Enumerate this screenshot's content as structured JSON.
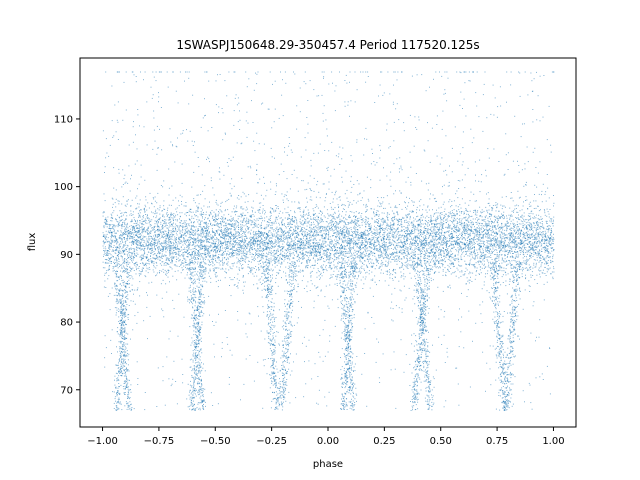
{
  "chart_data": {
    "type": "scatter",
    "title": "1SWASPJ150648.29-350457.4 Period 117520.125s",
    "xlabel": "phase",
    "ylabel": "flux",
    "xlim": [
      -1.1,
      1.1
    ],
    "ylim": [
      64.5,
      119
    ],
    "xticks": [
      -1.0,
      -0.75,
      -0.5,
      -0.25,
      0.0,
      0.25,
      0.5,
      0.75,
      1.0
    ],
    "xtick_labels": [
      "−1.00",
      "−0.75",
      "−0.50",
      "−0.25",
      "0.00",
      "0.25",
      "0.50",
      "0.75",
      "1.00"
    ],
    "yticks": [
      70,
      80,
      90,
      100,
      110
    ],
    "ytick_labels": [
      "70",
      "80",
      "90",
      "100",
      "110"
    ],
    "grid": false,
    "legend": "none",
    "marker_color": "#1f77b4",
    "series": [
      {
        "band_center": 92,
        "band_spread": 2.5,
        "x_range": [
          -1.0,
          1.0
        ],
        "y_range": [
          67,
          117
        ],
        "dips": [
          {
            "phase": -0.95,
            "depth_min": 67
          },
          {
            "phase": -0.88,
            "depth_min": 67
          },
          {
            "phase": -0.62,
            "depth_min": 67
          },
          {
            "phase": -0.55,
            "depth_min": 67
          },
          {
            "phase": -0.28,
            "depth_min": 67
          },
          {
            "phase": -0.15,
            "depth_min": 67
          },
          {
            "phase": 0.05,
            "depth_min": 67
          },
          {
            "phase": 0.12,
            "depth_min": 67
          },
          {
            "phase": 0.38,
            "depth_min": 67
          },
          {
            "phase": 0.45,
            "depth_min": 67
          },
          {
            "phase": 0.72,
            "depth_min": 67
          },
          {
            "phase": 0.85,
            "depth_min": 67
          }
        ]
      }
    ]
  }
}
